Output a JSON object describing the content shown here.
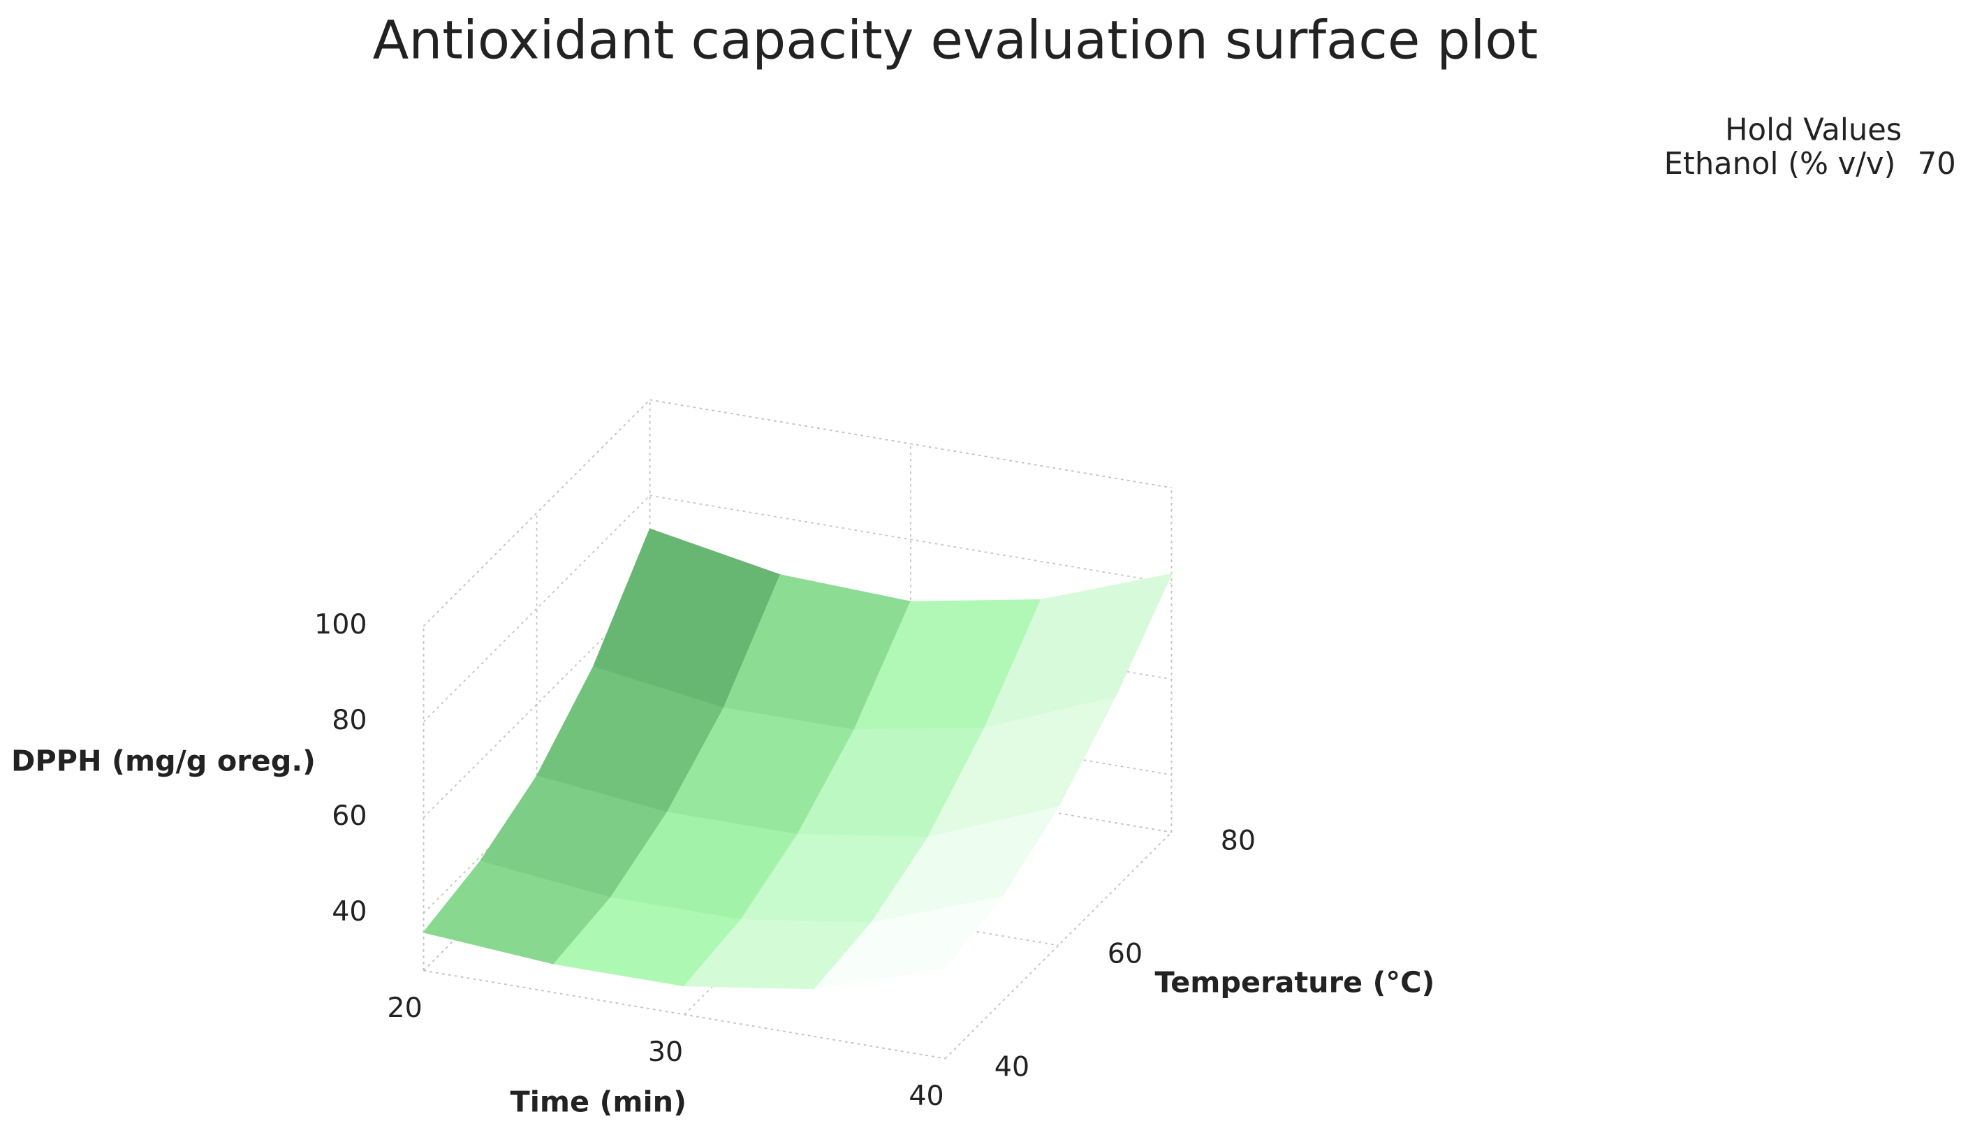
{
  "chart_data": {
    "type": "surface",
    "title": "Antioxidant capacity evaluation surface plot",
    "hold_values": {
      "title": "Hold Values",
      "name": "Ethanol (% v/v)",
      "value": 70
    },
    "xlabel": "Time (min)",
    "ylabel": "Temperature (°C)",
    "zlabel": "DPPH (mg/g oreg.)",
    "x": [
      20,
      25,
      30,
      35,
      40
    ],
    "y": [
      40,
      50,
      60,
      70,
      80
    ],
    "z": [
      [
        36,
        34,
        34,
        38,
        47
      ],
      [
        39,
        36,
        36,
        40,
        50
      ],
      [
        45,
        42,
        42,
        46,
        57
      ],
      [
        56,
        52,
        52,
        57,
        68
      ],
      [
        73,
        68,
        67,
        72,
        82
      ]
    ],
    "xlim": [
      20,
      40
    ],
    "xticks": [
      20,
      30,
      40
    ],
    "ylim": [
      40,
      80
    ],
    "yticks": [
      40,
      60,
      80
    ],
    "zlim": [
      28,
      100
    ],
    "zticks": [
      40,
      60,
      80,
      100
    ],
    "colors": [
      "#4f9e5b",
      "#a6f7ad",
      "#ffffff"
    ]
  }
}
